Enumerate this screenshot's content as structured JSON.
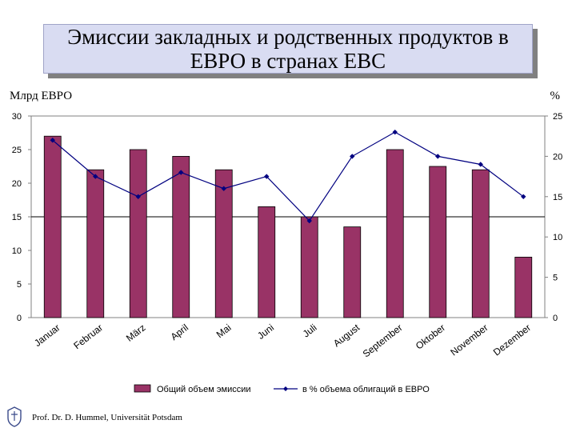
{
  "title": "Эмиссии закладных и родственных продуктов в ЕВРО в странах ЕВС",
  "left_unit": "Млрд ЕВРО",
  "right_unit": "%",
  "footer": "Prof. Dr. D. Hummel, Universität Potsdam",
  "colors": {
    "bar": "#993366",
    "line": "#000080",
    "title_bg": "#d9dcf2"
  },
  "chart_data": {
    "type": "bar",
    "categories": [
      "Januar",
      "Februar",
      "März",
      "April",
      "Mai",
      "Juni",
      "Juli",
      "August",
      "September",
      "Oktober",
      "November",
      "Dezember"
    ],
    "series": [
      {
        "name": "Общий объем эмиссии",
        "type": "bar",
        "axis": "left",
        "values": [
          27,
          22,
          25,
          24,
          22,
          16.5,
          15,
          13.5,
          25,
          22.5,
          22,
          9
        ]
      },
      {
        "name": "в % объема облигаций  в ЕВРО",
        "type": "line",
        "axis": "right",
        "values": [
          22,
          17.5,
          15,
          18,
          16,
          17.5,
          12,
          20,
          23,
          20,
          19,
          15
        ]
      }
    ],
    "y_left": {
      "min": 0,
      "max": 30,
      "ticks": [
        0,
        5,
        10,
        15,
        20,
        25,
        30
      ]
    },
    "y_right": {
      "min": 0,
      "max": 25,
      "ticks": [
        0,
        5,
        10,
        15,
        20,
        25
      ]
    },
    "reference_line_left": 15,
    "grid": false,
    "legend": "bottom"
  }
}
